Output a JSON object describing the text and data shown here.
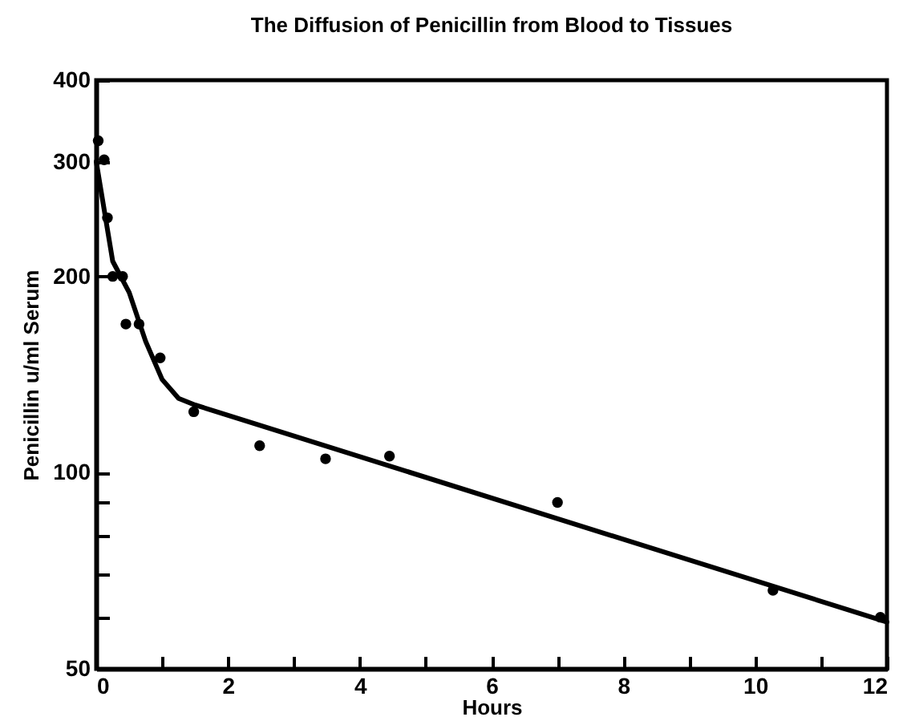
{
  "chart_data": {
    "type": "scatter",
    "title": "The Diffusion of Penicillin from Blood to Tissues",
    "xlabel": "Hours",
    "ylabel": "Penicillin u/ml Serum",
    "series": [
      {
        "color": "#000000",
        "x": [
          0.03,
          0.12,
          0.17,
          0.25,
          0.4,
          0.45,
          0.65,
          0.97,
          1.48,
          2.48,
          3.48,
          4.45,
          7.0,
          10.27,
          11.9
        ],
        "values": [
          323,
          302,
          246,
          200,
          200,
          169,
          169,
          150,
          124,
          110,
          105,
          106,
          90,
          66,
          60
        ]
      },
      {
        "type": "line",
        "color": "#000000",
        "x": [
          0,
          0.25,
          0.5,
          0.75,
          1,
          1.25,
          1.5,
          12
        ],
        "values": [
          300,
          211,
          189,
          159,
          139,
          130,
          127,
          59
        ]
      }
    ],
    "xlim": [
      0,
      12
    ],
    "xticks": [
      0,
      {
        "value": 1,
        "label": null
      },
      2,
      {
        "value": 3,
        "label": null
      },
      4,
      {
        "value": 5,
        "label": null
      },
      6,
      {
        "value": 7,
        "label": null
      },
      8,
      {
        "value": 9,
        "label": null
      },
      10,
      {
        "value": 11,
        "label": null
      },
      12
    ],
    "ylim": [
      50,
      400
    ],
    "yticks": [
      50,
      {
        "value": 60,
        "label": null
      },
      {
        "value": 70,
        "label": null
      },
      {
        "value": 80,
        "label": null
      },
      {
        "value": 90,
        "label": null
      },
      100,
      200,
      300,
      400
    ],
    "log": "y",
    "grid": false
  }
}
